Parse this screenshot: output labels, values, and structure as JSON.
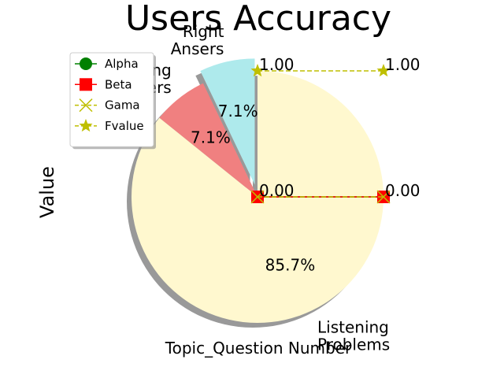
{
  "chart_data": {
    "type": "pie",
    "title": "Users Accuracy",
    "xlabel": "Topic_Question Number",
    "ylabel": "Value",
    "slices": [
      {
        "label": "Right\nAnsers",
        "value": 7.1,
        "pct_label": "7.1%",
        "color": "#aeeaec",
        "exploded": true
      },
      {
        "label": "Wrong\nAnsers",
        "value": 7.1,
        "pct_label": "7.1%",
        "color": "#f08080",
        "exploded": false
      },
      {
        "label": "Listening\nProblems",
        "value": 85.7,
        "pct_label": "85.7%",
        "color": "#fff8cf",
        "exploded": false
      }
    ],
    "series": [
      {
        "name": "Alpha",
        "marker": "circle",
        "color": "#008000",
        "linestyle": "solid",
        "x": [
          0,
          1
        ],
        "y": [
          0,
          0
        ]
      },
      {
        "name": "Beta",
        "marker": "square",
        "color": "#ff0000",
        "linestyle": "solid",
        "x": [
          0,
          1
        ],
        "y": [
          0,
          0
        ]
      },
      {
        "name": "Gama",
        "marker": "x",
        "color": "#bfbf00",
        "linestyle": "dashed",
        "x": [
          0,
          1
        ],
        "y": [
          0,
          0
        ]
      },
      {
        "name": "Fvalue",
        "marker": "star",
        "color": "#bfbf00",
        "linestyle": "dashed",
        "x": [
          0,
          1
        ],
        "y": [
          1,
          1
        ]
      }
    ],
    "point_labels": [
      {
        "x": 0,
        "y": 0,
        "text": "0.00"
      },
      {
        "x": 1,
        "y": 0,
        "text": "0.00"
      },
      {
        "x": 0,
        "y": 1,
        "text": "1.00"
      },
      {
        "x": 1,
        "y": 1,
        "text": "1.00"
      }
    ],
    "legend_position": "top-left",
    "grid": false
  }
}
